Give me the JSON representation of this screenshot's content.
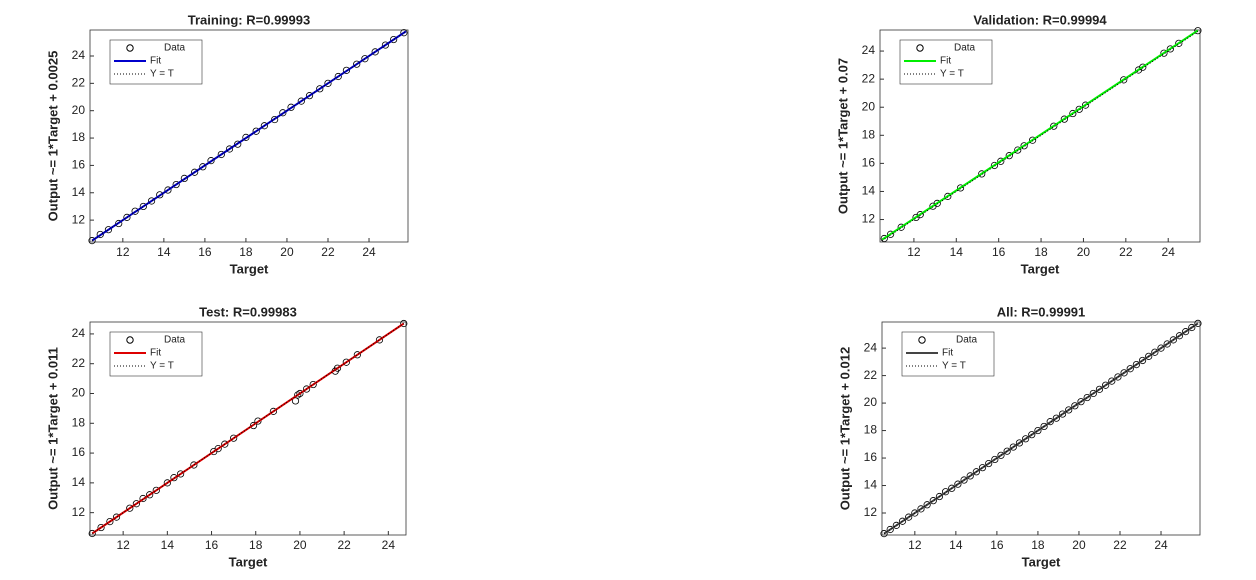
{
  "chart_data": [
    {
      "type": "scatter",
      "title": "Training: R=0.99993",
      "xlabel": "Target",
      "ylabel": "Output ~= 1*Target + 0.0025",
      "legend": "upper left",
      "xlim": [
        10.4,
        25.9
      ],
      "ylim": [
        10.4,
        25.9
      ],
      "xticks": [
        12,
        14,
        16,
        18,
        20,
        22,
        24
      ],
      "yticks": [
        12,
        14,
        16,
        18,
        20,
        22,
        24
      ],
      "series": [
        {
          "name": "Data",
          "type": "scatter",
          "color": "#000000",
          "x": [
            10.5,
            10.9,
            11.3,
            11.8,
            12.2,
            12.6,
            13.0,
            13.4,
            13.8,
            14.2,
            14.6,
            15.0,
            15.5,
            15.9,
            16.3,
            16.8,
            17.2,
            17.6,
            18.0,
            18.5,
            18.9,
            19.4,
            19.8,
            20.2,
            20.7,
            21.1,
            21.6,
            22.0,
            22.5,
            22.9,
            23.4,
            23.8,
            24.3,
            24.8,
            25.2,
            25.7
          ],
          "values": [
            10.5,
            10.95,
            11.3,
            11.75,
            12.2,
            12.65,
            13.0,
            13.4,
            13.85,
            14.2,
            14.6,
            15.05,
            15.5,
            15.9,
            16.35,
            16.8,
            17.2,
            17.55,
            18.05,
            18.5,
            18.9,
            19.35,
            19.85,
            20.25,
            20.7,
            21.1,
            21.6,
            22.0,
            22.5,
            22.95,
            23.4,
            23.8,
            24.3,
            24.8,
            25.2,
            25.7
          ]
        },
        {
          "name": "Fit",
          "type": "line",
          "color": "#0000cc",
          "x": [
            10.5,
            25.8
          ],
          "values": [
            10.5,
            25.8
          ]
        },
        {
          "name": "Y = T",
          "type": "line",
          "color": "#000000",
          "linestyle": "dotted",
          "x": [
            10.5,
            25.8
          ],
          "values": [
            10.5,
            25.8
          ]
        }
      ]
    },
    {
      "type": "scatter",
      "title": "Validation: R=0.99994",
      "xlabel": "Target",
      "ylabel": "Output ~= 1*Target + 0.07",
      "legend": "upper left",
      "xlim": [
        10.4,
        25.5
      ],
      "ylim": [
        10.4,
        25.5
      ],
      "xticks": [
        12,
        14,
        16,
        18,
        20,
        22,
        24
      ],
      "yticks": [
        12,
        14,
        16,
        18,
        20,
        22,
        24
      ],
      "series": [
        {
          "name": "Data",
          "type": "scatter",
          "color": "#000000",
          "x": [
            10.6,
            10.9,
            11.4,
            12.1,
            12.3,
            12.9,
            13.1,
            13.6,
            14.2,
            15.2,
            15.8,
            16.1,
            16.5,
            16.9,
            17.2,
            17.6,
            18.6,
            19.1,
            19.5,
            19.8,
            20.1,
            21.9,
            22.6,
            22.8,
            23.8,
            24.1,
            24.5,
            25.4
          ],
          "values": [
            10.65,
            10.95,
            11.45,
            12.15,
            12.35,
            12.95,
            13.15,
            13.65,
            14.25,
            15.25,
            15.85,
            16.15,
            16.55,
            16.95,
            17.25,
            17.65,
            18.65,
            19.15,
            19.55,
            19.85,
            20.15,
            21.95,
            22.65,
            22.85,
            23.85,
            24.15,
            24.55,
            25.45
          ]
        },
        {
          "name": "Fit",
          "type": "line",
          "color": "#00ee00",
          "x": [
            10.5,
            25.4
          ],
          "values": [
            10.57,
            25.47
          ]
        },
        {
          "name": "Y = T",
          "type": "line",
          "color": "#000000",
          "linestyle": "dotted",
          "x": [
            10.5,
            25.4
          ],
          "values": [
            10.5,
            25.4
          ]
        }
      ]
    },
    {
      "type": "scatter",
      "title": "Test: R=0.99983",
      "xlabel": "Target",
      "ylabel": "Output ~= 1*Target + 0.011",
      "legend": "upper left",
      "xlim": [
        10.5,
        24.8
      ],
      "ylim": [
        10.5,
        24.8
      ],
      "xticks": [
        12,
        14,
        16,
        18,
        20,
        22,
        24
      ],
      "yticks": [
        12,
        14,
        16,
        18,
        20,
        22,
        24
      ],
      "series": [
        {
          "name": "Data",
          "type": "scatter",
          "color": "#000000",
          "x": [
            10.6,
            11.0,
            11.4,
            11.7,
            12.3,
            12.6,
            12.9,
            13.2,
            13.5,
            14.0,
            14.3,
            14.6,
            15.2,
            16.1,
            16.3,
            16.6,
            17.0,
            17.9,
            18.1,
            18.8,
            19.8,
            19.9,
            20.0,
            20.3,
            20.6,
            21.6,
            21.7,
            22.1,
            22.6,
            23.6,
            24.7
          ],
          "values": [
            10.6,
            11.0,
            11.4,
            11.7,
            12.3,
            12.6,
            12.95,
            13.2,
            13.5,
            14.0,
            14.35,
            14.6,
            15.2,
            16.1,
            16.3,
            16.6,
            17.0,
            17.85,
            18.15,
            18.8,
            19.5,
            19.9,
            20.0,
            20.3,
            20.6,
            21.5,
            21.7,
            22.1,
            22.6,
            23.6,
            24.7
          ]
        },
        {
          "name": "Fit",
          "type": "line",
          "color": "#dd0000",
          "x": [
            10.6,
            24.7
          ],
          "values": [
            10.6,
            24.7
          ]
        },
        {
          "name": "Y = T",
          "type": "line",
          "color": "#000000",
          "linestyle": "dotted",
          "x": [
            10.6,
            24.7
          ],
          "values": [
            10.6,
            24.7
          ]
        }
      ]
    },
    {
      "type": "scatter",
      "title": "All: R=0.99991",
      "xlabel": "Target",
      "ylabel": "Output ~= 1*Target + 0.012",
      "legend": "upper left",
      "xlim": [
        10.4,
        25.9
      ],
      "ylim": [
        10.4,
        25.9
      ],
      "xticks": [
        12,
        14,
        16,
        18,
        20,
        22,
        24
      ],
      "yticks": [
        12,
        14,
        16,
        18,
        20,
        22,
        24
      ],
      "series": [
        {
          "name": "Data",
          "type": "scatter",
          "color": "#000000",
          "x": [
            10.5,
            10.8,
            11.1,
            11.4,
            11.7,
            12.0,
            12.3,
            12.6,
            12.9,
            13.2,
            13.5,
            13.8,
            14.1,
            14.4,
            14.7,
            15.0,
            15.3,
            15.6,
            15.9,
            16.2,
            16.5,
            16.8,
            17.1,
            17.4,
            17.7,
            18.0,
            18.3,
            18.6,
            18.9,
            19.2,
            19.5,
            19.8,
            20.1,
            20.4,
            20.7,
            21.0,
            21.3,
            21.6,
            21.9,
            22.2,
            22.5,
            22.8,
            23.1,
            23.4,
            23.7,
            24.0,
            24.3,
            24.6,
            24.9,
            25.2,
            25.5,
            25.8
          ],
          "values": [
            10.5,
            10.8,
            11.1,
            11.4,
            11.7,
            12.0,
            12.3,
            12.6,
            12.9,
            13.2,
            13.55,
            13.8,
            14.1,
            14.4,
            14.7,
            15.0,
            15.3,
            15.6,
            15.9,
            16.2,
            16.5,
            16.8,
            17.1,
            17.4,
            17.7,
            18.0,
            18.3,
            18.65,
            18.9,
            19.2,
            19.5,
            19.8,
            20.1,
            20.4,
            20.7,
            21.0,
            21.3,
            21.6,
            21.9,
            22.2,
            22.5,
            22.8,
            23.1,
            23.4,
            23.7,
            24.0,
            24.3,
            24.6,
            24.9,
            25.2,
            25.5,
            25.8
          ]
        },
        {
          "name": "Fit",
          "type": "line",
          "color": "#444444",
          "x": [
            10.5,
            25.8
          ],
          "values": [
            10.5,
            25.8
          ]
        },
        {
          "name": "Y = T",
          "type": "line",
          "color": "#000000",
          "linestyle": "dotted",
          "x": [
            10.5,
            25.8
          ],
          "values": [
            10.5,
            25.8
          ]
        }
      ]
    }
  ]
}
